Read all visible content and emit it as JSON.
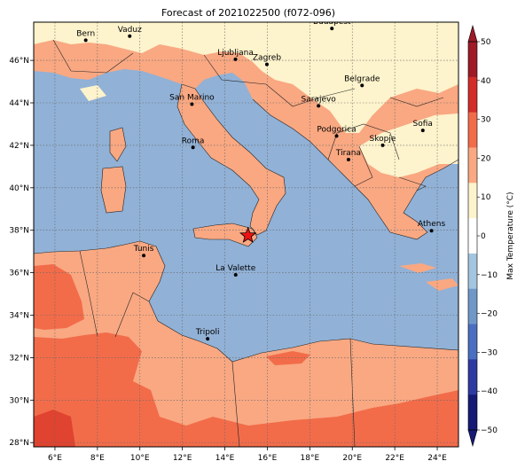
{
  "title": "Forecast of 2021022500 (f072-096)",
  "map": {
    "lon_range": [
      5,
      25
    ],
    "lat_range": [
      27.8,
      47.8
    ],
    "grid": true,
    "colors": {
      "sea": "#91b1d6",
      "land_warm": "#f9a882",
      "land_hot": "#f26c4a",
      "land_hotter": "#e0432f",
      "land_cool": "#fdf3cc"
    },
    "lon_ticks": [
      {
        "lon": 6,
        "label": "6°E"
      },
      {
        "lon": 8,
        "label": "8°E"
      },
      {
        "lon": 10,
        "label": "10°E"
      },
      {
        "lon": 12,
        "label": "12°E"
      },
      {
        "lon": 14,
        "label": "14°E"
      },
      {
        "lon": 16,
        "label": "16°E"
      },
      {
        "lon": 18,
        "label": "18°E"
      },
      {
        "lon": 20,
        "label": "20°E"
      },
      {
        "lon": 22,
        "label": "22°E"
      },
      {
        "lon": 24,
        "label": "24°E"
      }
    ],
    "lat_ticks": [
      {
        "lat": 28,
        "label": "28°N"
      },
      {
        "lat": 30,
        "label": "30°N"
      },
      {
        "lat": 32,
        "label": "32°N"
      },
      {
        "lat": 34,
        "label": "34°N"
      },
      {
        "lat": 36,
        "label": "36°N"
      },
      {
        "lat": 38,
        "label": "38°N"
      },
      {
        "lat": 40,
        "label": "40°N"
      },
      {
        "lat": 42,
        "label": "42°N"
      },
      {
        "lat": 44,
        "label": "44°N"
      },
      {
        "lat": 46,
        "label": "46°N"
      }
    ],
    "cities": [
      {
        "name": "Bern",
        "lon": 7.45,
        "lat": 46.95
      },
      {
        "name": "Vaduz",
        "lon": 9.52,
        "lat": 47.14
      },
      {
        "name": "Budapest",
        "lon": 19.04,
        "lat": 47.5
      },
      {
        "name": "Ljubljana",
        "lon": 14.5,
        "lat": 46.05
      },
      {
        "name": "Zagreb",
        "lon": 15.98,
        "lat": 45.81
      },
      {
        "name": "Belgrade",
        "lon": 20.46,
        "lat": 44.82
      },
      {
        "name": "San Marino",
        "lon": 12.45,
        "lat": 43.94
      },
      {
        "name": "Sarajevo",
        "lon": 18.41,
        "lat": 43.86
      },
      {
        "name": "Sofia",
        "lon": 23.32,
        "lat": 42.7
      },
      {
        "name": "Podgorica",
        "lon": 19.26,
        "lat": 42.44
      },
      {
        "name": "Skopje",
        "lon": 21.43,
        "lat": 42.0
      },
      {
        "name": "Roma",
        "lon": 12.5,
        "lat": 41.9
      },
      {
        "name": "Tirana",
        "lon": 19.82,
        "lat": 41.33
      },
      {
        "name": "Athens",
        "lon": 23.73,
        "lat": 37.98
      },
      {
        "name": "Tunis",
        "lon": 10.18,
        "lat": 36.81
      },
      {
        "name": "La Valette",
        "lon": 14.51,
        "lat": 35.9
      },
      {
        "name": "Tripoli",
        "lon": 13.19,
        "lat": 32.89
      }
    ],
    "marker": {
      "lon": 15.09,
      "lat": 37.75
    }
  },
  "colorbar": {
    "label": "Max Temperature (°C)",
    "ticks": [
      "−50",
      "−40",
      "−30",
      "−20",
      "−10",
      "0",
      "10",
      "20",
      "30",
      "40",
      "50"
    ],
    "bands": [
      "#151a75",
      "#2e3aa0",
      "#4a6ec0",
      "#6f98c8",
      "#a3c5e0",
      "#ffffff",
      "#fdf3cc",
      "#f9a882",
      "#f26c4a",
      "#d22d27",
      "#9e1a27"
    ]
  }
}
